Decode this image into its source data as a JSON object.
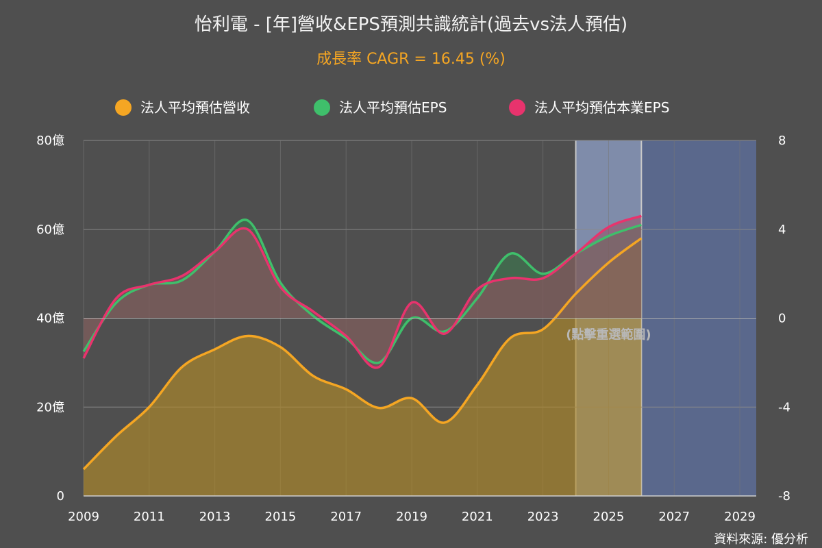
{
  "chart_data": {
    "type": "line",
    "title": "怡利電 - [年]營收&EPS預測共識統計(過去vs法人預估)",
    "subtitle": "成長率 CAGR = 16.45 (%)",
    "x": [
      2009,
      2010,
      2011,
      2012,
      2013,
      2014,
      2015,
      2016,
      2017,
      2018,
      2019,
      2020,
      2021,
      2022,
      2023,
      2024,
      2025,
      2026
    ],
    "x_ticks": [
      "2009",
      "2011",
      "2013",
      "2015",
      "2017",
      "2019",
      "2021",
      "2023",
      "2025",
      "2027",
      "2029"
    ],
    "xlim": [
      2009,
      2029.5
    ],
    "y_left": {
      "lim": [
        0,
        80
      ],
      "ticks": [
        "0",
        "20億",
        "40億",
        "60億",
        "80億"
      ]
    },
    "y_right": {
      "lim": [
        -8,
        8
      ],
      "ticks": [
        "-8",
        "-4",
        "0",
        "4",
        "8"
      ]
    },
    "series": [
      {
        "name": "法人平均預估營收",
        "axis": "left",
        "color": "#f5a623",
        "values": [
          6,
          13.5,
          20,
          29,
          33,
          36,
          33.5,
          27,
          24,
          19.8,
          22,
          16.5,
          25,
          35.5,
          37.5,
          45.5,
          52.5,
          58
        ]
      },
      {
        "name": "法人平均預估EPS",
        "axis": "right",
        "color": "#3fbf6b",
        "values": [
          -1.5,
          0.7,
          1.5,
          1.7,
          3.0,
          4.4,
          1.6,
          0.1,
          -0.9,
          -2.0,
          0.0,
          -0.6,
          0.9,
          2.9,
          2.0,
          2.9,
          3.7,
          4.2
        ]
      },
      {
        "name": "法人平均預估本業EPS",
        "axis": "right",
        "color": "#e8336d",
        "values": [
          -1.8,
          0.9,
          1.5,
          1.9,
          3.0,
          4.0,
          1.4,
          0.3,
          -0.8,
          -2.2,
          0.7,
          -0.7,
          1.3,
          1.8,
          1.8,
          2.9,
          4.1,
          4.6
        ]
      }
    ],
    "legend_position": "top",
    "highlight_band": {
      "from": 2024,
      "to": 2026,
      "color": "#8fa0c8"
    },
    "forecast_area": {
      "from": 2026,
      "to": 2029.5,
      "color": "#5b6a92"
    },
    "annotation": "(點擊重選範圍)",
    "grid": true
  },
  "source": "資料來源: 優分析"
}
